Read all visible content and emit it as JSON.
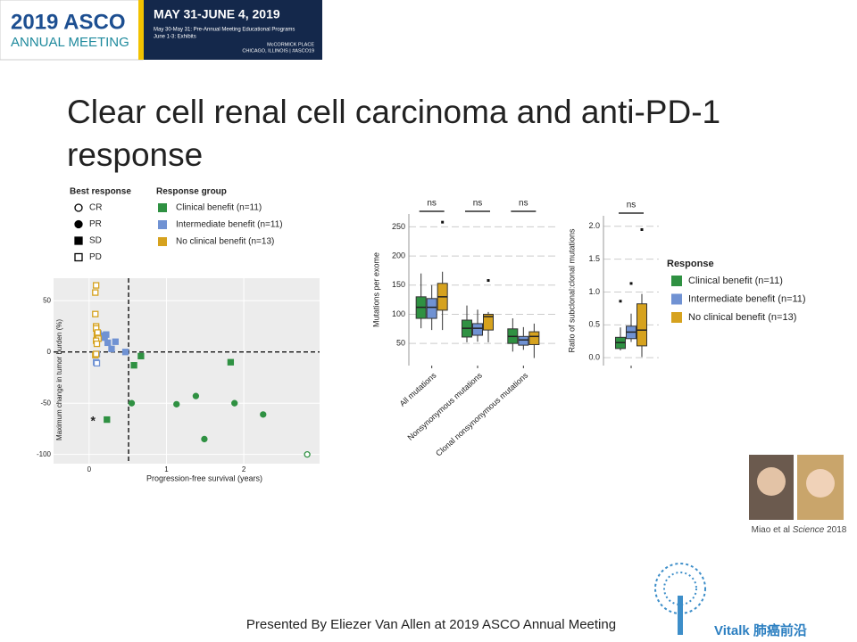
{
  "header": {
    "brand": "2019 ASCO",
    "subtitle": "ANNUAL MEETING",
    "dates": "MAY 31-JUNE 4, 2019",
    "program": "May 30-May 31: Pre-Annual Meeting Educational Programs",
    "exhibits": "June 1-3: Exhibits",
    "venue": "McCORMICK PLACE",
    "location": "CHICAGO, ILLINOIS | #ASCO19"
  },
  "title": "Clear cell renal cell carcinoma and anti-PD-1 response",
  "citation": {
    "authors": "Miao et al",
    "journal": "Science",
    "year": "2018"
  },
  "footer": "Presented By Eliezer Van Allen at 2019 ASCO Annual Meeting",
  "watermark": "Vitalk 肺癌前沿",
  "chart_data": [
    {
      "type": "scatter",
      "xlabel": "Progression-free survival (years)",
      "ylabel": "Maximum change in tumor burden (%)",
      "xlim": [
        -0.46,
        2.98
      ],
      "ylim": [
        -109,
        72
      ],
      "xticks": [
        0,
        1,
        2
      ],
      "yticks": [
        -100,
        -50,
        0,
        50
      ],
      "grid": true,
      "reference_lines": {
        "x": 0.51,
        "y": 0
      },
      "annotations": [
        {
          "text": "*",
          "x": 0.14,
          "y": -66
        }
      ],
      "legend_titles": [
        "Best response",
        "Response group"
      ],
      "best_response": [
        {
          "label": "CR",
          "shape": "circle",
          "filled": false
        },
        {
          "label": "PR",
          "shape": "circle",
          "filled": true
        },
        {
          "label": "SD",
          "shape": "square",
          "filled": true
        },
        {
          "label": "PD",
          "shape": "square",
          "filled": false
        }
      ],
      "series": [
        {
          "name": "Clinical benefit (n=11)",
          "color": "#2f9142",
          "x": [
            0.23,
            0.58,
            0.67,
            0.55,
            1.13,
            1.38,
            1.49,
            1.83,
            1.88,
            2.25,
            2.82
          ],
          "values": [
            -66,
            -13,
            -4,
            -50,
            -51,
            -43,
            -85,
            -10,
            -50,
            -61,
            -100
          ],
          "markers": [
            "SD",
            "SD",
            "SD",
            "PR",
            "PR",
            "PR",
            "PR",
            "SD",
            "PR",
            "PR",
            "CR"
          ]
        },
        {
          "name": "Intermediate benefit (n=11)",
          "color": "#7092d3",
          "x": [
            0.22,
            0.24,
            0.34,
            0.29,
            0.47,
            0.09,
            0.1,
            0.18,
            0.1,
            0.12,
            0.2
          ],
          "values": [
            17,
            9,
            10,
            3,
            0,
            -10,
            -11,
            16,
            -2,
            18,
            14
          ],
          "markers": [
            "SD",
            "SD",
            "SD",
            "SD",
            "SD",
            "PD",
            "PD",
            "SD",
            "PD",
            "SD",
            "SD"
          ]
        },
        {
          "name": "No clinical benefit (n=13)",
          "color": "#d6a21e",
          "x": [
            0.09,
            0.08,
            0.08,
            0.09,
            0.09,
            0.1,
            0.11,
            0.12,
            0.09,
            0.08,
            0.1,
            0.11,
            0.09
          ],
          "values": [
            65,
            58,
            37,
            25,
            23,
            17,
            15,
            13,
            11,
            -3,
            8,
            19,
            -2
          ],
          "markers": [
            "PD",
            "PD",
            "PD",
            "PD",
            "PD",
            "PD",
            "PD",
            "PD",
            "PD",
            "PD",
            "PD",
            "PD",
            "PD"
          ]
        }
      ]
    },
    {
      "type": "box",
      "ylabel": "Mutations per exome",
      "categories": [
        "All mutations",
        "Nonsynonymous mutations",
        "Clonal nonsynonymous mutations"
      ],
      "significance": [
        "ns",
        "ns",
        "ns"
      ],
      "ylim": [
        12,
        272
      ],
      "yticks": [
        50,
        100,
        150,
        200,
        250
      ],
      "grid": true,
      "series": [
        {
          "color": "#2f9142",
          "min": [
            76,
            52,
            36
          ],
          "q1": [
            93,
            61,
            50
          ],
          "median": [
            112,
            76,
            62
          ],
          "q3": [
            130,
            90,
            75
          ],
          "max": [
            170,
            115,
            93
          ],
          "outliers": [
            [],
            [],
            []
          ]
        },
        {
          "color": "#7092d3",
          "min": [
            73,
            53,
            39
          ],
          "q1": [
            93,
            64,
            47
          ],
          "median": [
            112,
            76,
            56
          ],
          "q3": [
            127,
            84,
            62
          ],
          "max": [
            150,
            108,
            78
          ],
          "outliers": [
            [],
            [],
            []
          ]
        },
        {
          "color": "#d6a21e",
          "min": [
            73,
            52,
            25
          ],
          "q1": [
            107,
            73,
            48
          ],
          "median": [
            130,
            96,
            62
          ],
          "q3": [
            153,
            100,
            70
          ],
          "max": [
            173,
            104,
            84
          ],
          "outliers": [
            [
              258
            ],
            [
              158
            ],
            []
          ]
        }
      ]
    },
    {
      "type": "box",
      "ylabel": "Ratio of subclonal:clonal mutations",
      "categories": [
        null
      ],
      "significance": [
        "ns"
      ],
      "ylim": [
        -0.12,
        2.16
      ],
      "yticks": [
        {
          "value": 0,
          "label": "0.0"
        },
        0.5,
        {
          "value": 1,
          "label": "1.0"
        },
        1.5,
        {
          "value": 2,
          "label": "2.0"
        }
      ],
      "grid": true,
      "legend_title": "Response",
      "series": [
        {
          "name": "Clinical benefit (n=11)",
          "color": "#2f9142",
          "min": [
            0.11
          ],
          "q1": [
            0.14
          ],
          "median": [
            0.23
          ],
          "q3": [
            0.31
          ],
          "max": [
            0.46
          ],
          "outliers": [
            [
              0.86
            ]
          ]
        },
        {
          "name": "Intermediate benefit (n=11)",
          "color": "#7092d3",
          "min": [
            0.24
          ],
          "q1": [
            0.29
          ],
          "median": [
            0.39
          ],
          "q3": [
            0.48
          ],
          "max": [
            0.67
          ],
          "outliers": [
            [
              1.13
            ]
          ]
        },
        {
          "name": "No clinical benefit (n=13)",
          "color": "#d6a21e",
          "min": [
            0.01
          ],
          "q1": [
            0.18
          ],
          "median": [
            0.42
          ],
          "q3": [
            0.82
          ],
          "max": [
            0.97
          ],
          "outliers": [
            [
              1.95
            ]
          ]
        }
      ]
    }
  ]
}
